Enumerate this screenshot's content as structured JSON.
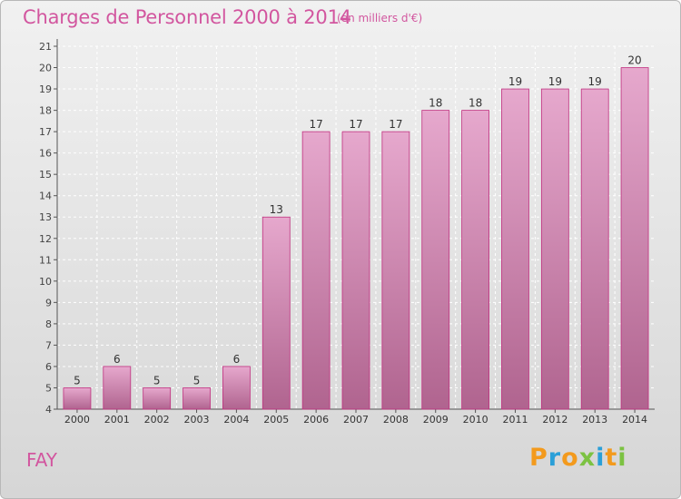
{
  "header": {
    "title": "Charges de Personnel 2000 à 2014",
    "subtitle": "(en milliers d'€)"
  },
  "footer": {
    "place": "FAY",
    "logo_text": "Proxiti",
    "logo_letters": [
      {
        "ch": "P",
        "color": "#f39a1d"
      },
      {
        "ch": "r",
        "color": "#2a9fd8"
      },
      {
        "ch": "o",
        "color": "#f39a1d"
      },
      {
        "ch": "x",
        "color": "#7cc242"
      },
      {
        "ch": "i",
        "color": "#2a9fd8"
      },
      {
        "ch": "t",
        "color": "#f39a1d"
      },
      {
        "ch": "i",
        "color": "#7cc242"
      }
    ]
  },
  "colors": {
    "bar_top": "#e6a8cd",
    "bar_bottom": "#b0648f",
    "bar_edge": "#c0307f",
    "text": "#d2569f"
  },
  "chart_data": {
    "type": "bar",
    "categories": [
      "2000",
      "2001",
      "2002",
      "2003",
      "2004",
      "2005",
      "2006",
      "2007",
      "2008",
      "2009",
      "2010",
      "2011",
      "2012",
      "2013",
      "2014"
    ],
    "values": [
      5,
      6,
      5,
      5,
      6,
      13,
      17,
      17,
      17,
      18,
      18,
      19,
      19,
      19,
      20
    ],
    "data_labels": [
      "5",
      "6",
      "5",
      "5",
      "6",
      "13",
      "17",
      "17",
      "17",
      "18",
      "18",
      "19",
      "19",
      "19",
      "20"
    ],
    "yticks": [
      "4",
      "5",
      "6",
      "7",
      "8",
      "9",
      "10",
      "11",
      "12",
      "13",
      "14",
      "15",
      "16",
      "17",
      "18",
      "19",
      "20",
      "21"
    ],
    "ylim": [
      4,
      21
    ],
    "grid": true,
    "title": "Charges de Personnel 2000 à 2014",
    "xlabel": "",
    "ylabel": ""
  }
}
